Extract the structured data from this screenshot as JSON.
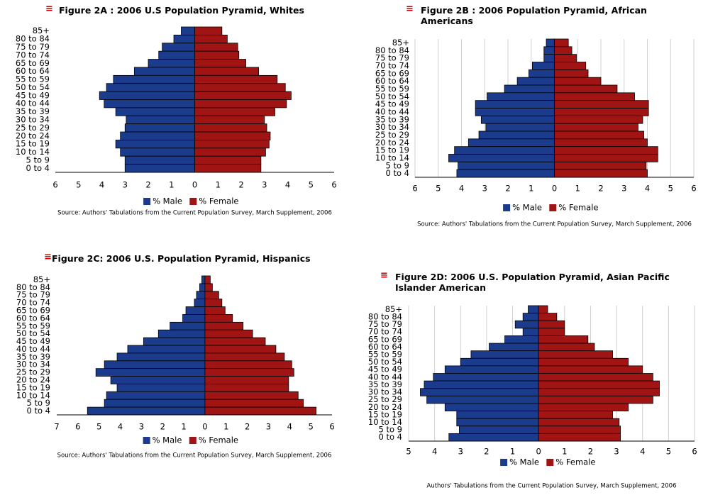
{
  "chart_data": [
    {
      "type": "pyramid",
      "title": "Figure 2A : 2006 U.S Population Pyramid, Whites",
      "source": "Source: Authors' Tabulations from the Current Population Survey, March Supplement, 2006",
      "categories": [
        "85+",
        "80 to 84",
        "75 to 79",
        "70 to 74",
        "65 to 69",
        "60 to 64",
        "55 to 59",
        "50 to 54",
        "45 to 49",
        "40 to 44",
        "35 to 39",
        "30 to 34",
        "25 to 29",
        "20 to 24",
        "15 to 19",
        "10 to 14",
        "5 to 9",
        "0 to 4"
      ],
      "series": [
        {
          "name": "% Male",
          "color": "#1b3c8c",
          "values": [
            -0.58,
            -0.9,
            -1.4,
            -1.55,
            -2.0,
            -2.6,
            -3.5,
            -3.8,
            -4.1,
            -3.9,
            -3.4,
            -2.95,
            -3.0,
            -3.2,
            -3.4,
            -3.2,
            -3.0,
            -3.0
          ]
        },
        {
          "name": "% Female",
          "color": "#a01414",
          "values": [
            1.17,
            1.4,
            1.85,
            1.9,
            2.2,
            2.75,
            3.55,
            3.9,
            4.15,
            3.95,
            3.45,
            3.0,
            3.1,
            3.25,
            3.2,
            3.05,
            2.85,
            2.85
          ]
        }
      ],
      "xlim": [
        -6,
        6
      ],
      "xticks": [
        {
          "value": -6,
          "label": "6"
        },
        {
          "value": -5,
          "label": "5"
        },
        {
          "value": -4,
          "label": "4"
        },
        {
          "value": -3,
          "label": "3"
        },
        {
          "value": -2,
          "label": "2"
        },
        {
          "value": -1,
          "label": "1"
        },
        0,
        1,
        2,
        3,
        4,
        5,
        6
      ],
      "grid": false
    },
    {
      "type": "pyramid",
      "title": "Figure 2B : 2006 Population Pyramid, African Americans",
      "source": "Source: Authors' Tabulations from the Current Population Survey, March Supplement, 2006",
      "categories": [
        "85+",
        "80 to 84",
        "75 to 79",
        "70 to 74",
        "65 to 69",
        "60 to 64",
        "55 to 59",
        "50 to 54",
        "45 to 49",
        "40 to 44",
        "35 to 39",
        "30 to 34",
        "25 to 29",
        "20 to 24",
        "15 to 19",
        "10 to 14",
        "5 to 9",
        "0 to 4"
      ],
      "series": [
        {
          "name": "% Male",
          "color": "#1b3c8c",
          "values": [
            -0.35,
            -0.45,
            -0.45,
            -0.95,
            -1.1,
            -1.6,
            -2.15,
            -2.9,
            -3.4,
            -3.4,
            -3.15,
            -2.95,
            -3.25,
            -3.7,
            -4.3,
            -4.55,
            -4.15,
            -4.2
          ]
        },
        {
          "name": "% Female",
          "color": "#a01414",
          "values": [
            0.6,
            0.75,
            0.95,
            1.35,
            1.45,
            2.0,
            2.7,
            3.45,
            4.05,
            4.05,
            3.8,
            3.6,
            3.85,
            4.0,
            4.45,
            4.45,
            3.95,
            4.0
          ]
        }
      ],
      "xlim": [
        -6,
        6
      ],
      "xticks": [
        {
          "value": -6,
          "label": "6"
        },
        {
          "value": -5,
          "label": "5"
        },
        {
          "value": -4,
          "label": "4"
        },
        {
          "value": -3,
          "label": "3"
        },
        {
          "value": -2,
          "label": "2"
        },
        {
          "value": -1,
          "label": "1"
        },
        0,
        1,
        2,
        3,
        4,
        5,
        6
      ],
      "grid": true
    },
    {
      "type": "pyramid",
      "title": "Figure 2C: 2006 U.S. Population Pyramid, Hispanics",
      "source": "Source: Authors' Tabulations from the Current Population Survey, March Supplement, 2006",
      "categories": [
        "85+",
        "80 to 84",
        "75 to 79",
        "70 to 74",
        "65 to 69",
        "60 to 64",
        "55 to 59",
        "50 to 54",
        "45 to 49",
        "40 to 44",
        "35 to 39",
        "30 to 34",
        "25 to 29",
        "20 to 24",
        "15 to 19",
        "10 to 14",
        "5 to 9",
        "0 to 4"
      ],
      "series": [
        {
          "name": "% Male",
          "color": "#1b3c8c",
          "values": [
            -0.15,
            -0.25,
            -0.4,
            -0.5,
            -0.9,
            -1.05,
            -1.65,
            -2.2,
            -2.9,
            -3.65,
            -4.15,
            -4.75,
            -5.15,
            -4.45,
            -4.15,
            -4.65,
            -4.75,
            -5.55
          ]
        },
        {
          "name": "% Female",
          "color": "#a01414",
          "values": [
            0.25,
            0.35,
            0.65,
            0.8,
            0.95,
            1.3,
            1.8,
            2.25,
            2.85,
            3.35,
            3.75,
            4.1,
            4.2,
            3.95,
            3.95,
            4.4,
            4.65,
            5.25
          ]
        }
      ],
      "xlim": [
        -7,
        6
      ],
      "xticks": [
        {
          "value": -7,
          "label": "7"
        },
        {
          "value": -6,
          "label": "6"
        },
        {
          "value": -5,
          "label": "5"
        },
        {
          "value": -4,
          "label": "4"
        },
        {
          "value": -3,
          "label": "3"
        },
        {
          "value": -2,
          "label": "2"
        },
        {
          "value": -1,
          "label": "1"
        },
        0,
        1,
        2,
        3,
        4,
        5,
        6
      ],
      "grid": false
    },
    {
      "type": "pyramid",
      "title": "Figure 2D: 2006 U.S. Population Pyramid, Asian Pacific Islander American",
      "source": "Authors' Tabulations from the Current Population Survey, March Supplement, 2006",
      "categories": [
        "85+",
        "80 to 84",
        "75 to 79",
        "70 to 74",
        "65 to 69",
        "60 to 64",
        "55 to 59",
        "50 to 54",
        "45 to 49",
        "40 to 44",
        "35 to 39",
        "30 to 34",
        "25 to 29",
        "20 to 24",
        "15 to 19",
        "10 to 14",
        "5 to 9",
        "0 to 4"
      ],
      "series": [
        {
          "name": "% Male",
          "color": "#1b3c8c",
          "values": [
            -0.4,
            -0.6,
            -0.9,
            -0.6,
            -1.3,
            -1.9,
            -2.6,
            -3.0,
            -3.6,
            -4.05,
            -4.4,
            -4.55,
            -4.3,
            -3.6,
            -3.15,
            -3.15,
            -3.05,
            -3.45
          ]
        },
        {
          "name": "% Female",
          "color": "#a01414",
          "values": [
            0.35,
            0.7,
            1.0,
            1.0,
            1.9,
            2.15,
            2.85,
            3.45,
            4.0,
            4.4,
            4.65,
            4.65,
            4.4,
            3.45,
            2.85,
            3.1,
            3.15,
            3.15
          ]
        }
      ],
      "xlim": [
        -5,
        6
      ],
      "xticks": [
        {
          "value": -5,
          "label": "5"
        },
        {
          "value": -4,
          "label": "4"
        },
        {
          "value": -3,
          "label": "3"
        },
        {
          "value": -2,
          "label": "2"
        },
        {
          "value": -1,
          "label": "1"
        },
        0,
        1,
        2,
        3,
        4,
        5,
        6
      ],
      "grid": true
    }
  ]
}
